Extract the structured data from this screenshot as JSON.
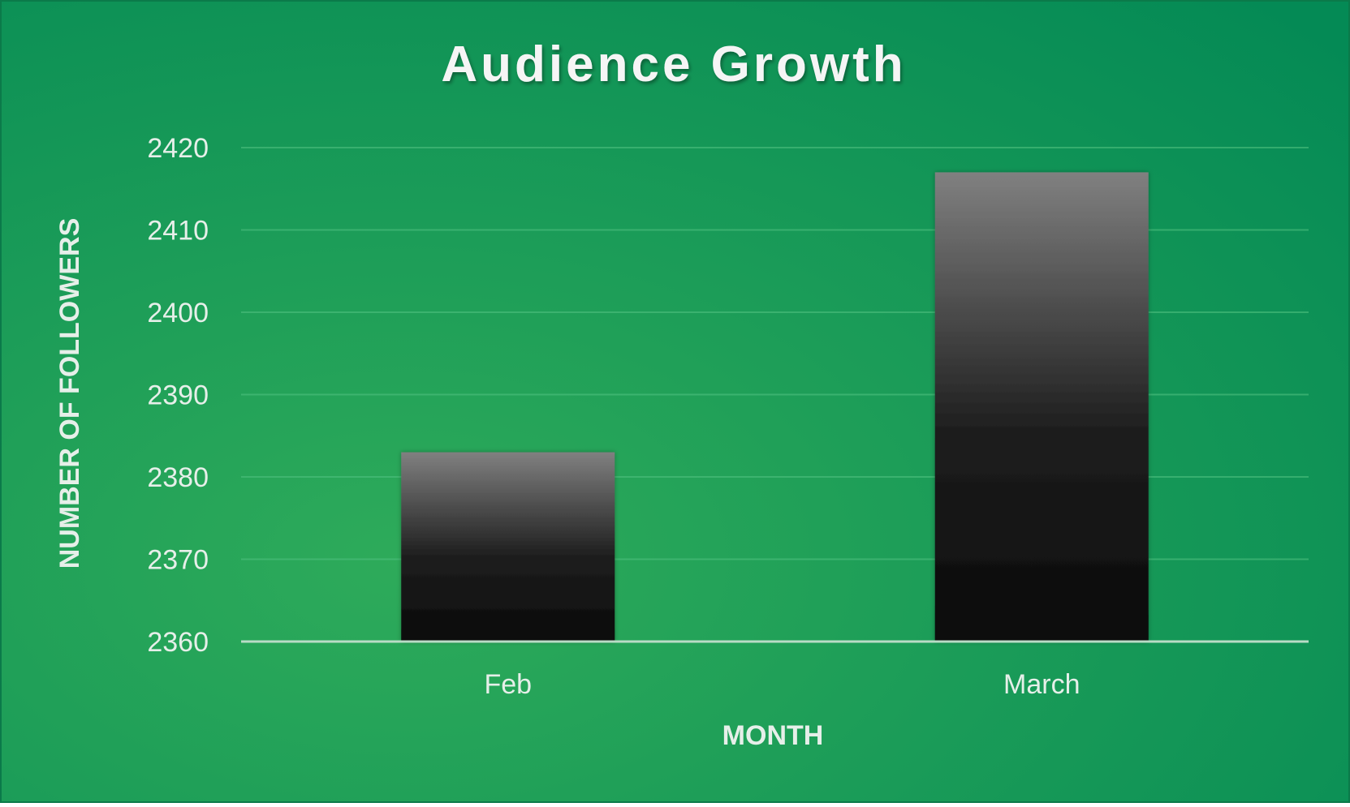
{
  "chart_data": {
    "type": "bar",
    "title": "Audience Growth",
    "xlabel": "MONTH",
    "ylabel": "NUMBER OF FOLLOWERS",
    "categories": [
      "Feb",
      "March"
    ],
    "values": [
      2383,
      2417
    ],
    "ylim": [
      2360,
      2420
    ],
    "yticks": [
      2360,
      2370,
      2380,
      2390,
      2400,
      2410,
      2420
    ],
    "grid": true,
    "legend": "none"
  },
  "colors": {
    "background_center": "#2eab5a",
    "background_edge": "#048a55",
    "bar_top": "#808080",
    "bar_bottom": "#0a0a0a",
    "text": "#e6efe9",
    "title": "#f5f5f5",
    "gridline": "#4fbf7f",
    "axis_line": "#b9dcc6"
  }
}
